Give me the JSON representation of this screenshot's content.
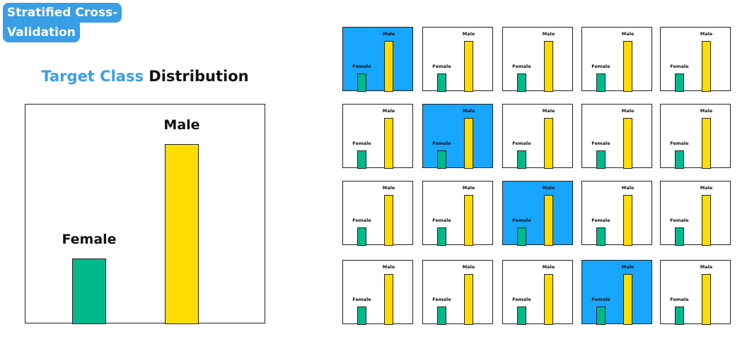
{
  "badge": {
    "line1": "Stratified Cross-",
    "line2": "Validation"
  },
  "title": {
    "accent": "Target Class",
    "rest": " Distribution"
  },
  "colors": {
    "accent": "#3a9ee6",
    "female": "#00b98a",
    "male": "#ffdd00",
    "highlight": "#18a6ff",
    "border": "#222222"
  },
  "chart_data": {
    "type": "bar",
    "categories": [
      "Female",
      "Male"
    ],
    "values": [
      30,
      82
    ],
    "ylim": [
      0,
      100
    ]
  },
  "folds": {
    "rows": 4,
    "cols": 5,
    "highlighted": [
      0,
      6,
      12,
      18
    ],
    "categories": [
      "Female",
      "Male"
    ],
    "values": [
      30,
      82
    ]
  }
}
